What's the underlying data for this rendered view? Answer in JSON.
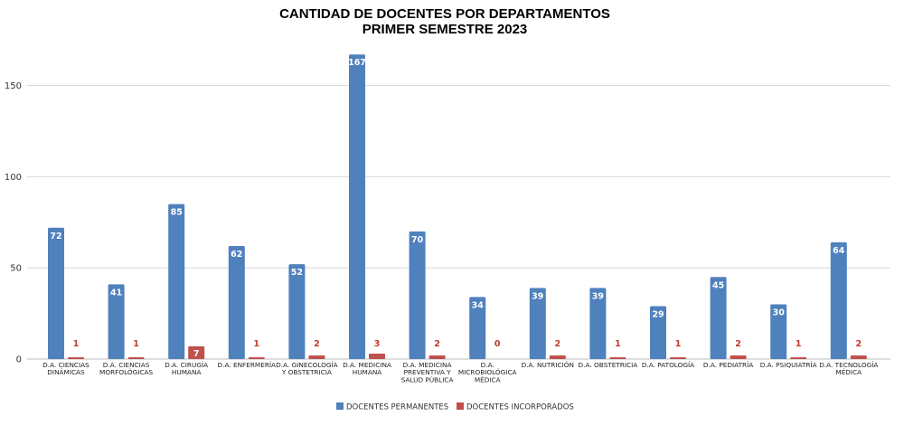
{
  "chart_data": {
    "type": "bar",
    "title": [
      "CANTIDAD DE DOCENTES POR DEPARTAMENTOS",
      "PRIMER SEMESTRE 2023"
    ],
    "categories": [
      [
        "D.A. CIENCIAS",
        "DINÁMICAS"
      ],
      [
        "D.A. CIENCIAS",
        "MORFOLÓGICAS"
      ],
      [
        "D.A. CIRUGÍA",
        "HUMANA"
      ],
      [
        "D.A. ENFERMERÍA"
      ],
      [
        "D.A. GINECOLOGÍA",
        "Y OBSTETRICIA"
      ],
      [
        "D.A. MEDICINA",
        "HUMANA"
      ],
      [
        "D.A. MEDICINA",
        "PREVENTIVA Y",
        "SALUD PÚBLICA"
      ],
      [
        "D.A.",
        "MICROBIOLÓGICA",
        "MÉDICA"
      ],
      [
        "D.A. NUTRICIÓN"
      ],
      [
        "D.A. OBSTETRICIA"
      ],
      [
        "D.A. PATOLOGÍA"
      ],
      [
        "D.A. PEDIATRÍA"
      ],
      [
        "D.A. PSIQUIATRÍA"
      ],
      [
        "D.A. TECNOLOGÍA",
        "MÉDICA"
      ]
    ],
    "series": [
      {
        "name": "DOCENTES PERMANENTES",
        "color": "#4f81bd",
        "values": [
          72,
          41,
          85,
          62,
          52,
          167,
          70,
          34,
          39,
          39,
          29,
          45,
          30,
          64
        ]
      },
      {
        "name": "DOCENTES INCORPORADOS",
        "color": "#c0504d",
        "values": [
          1,
          1,
          7,
          1,
          2,
          3,
          2,
          0,
          2,
          1,
          1,
          2,
          1,
          2
        ]
      }
    ],
    "yticks": [
      0,
      50,
      100,
      150
    ],
    "ylim": [
      0,
      170
    ],
    "grid": true,
    "legend_position": "bottom"
  }
}
